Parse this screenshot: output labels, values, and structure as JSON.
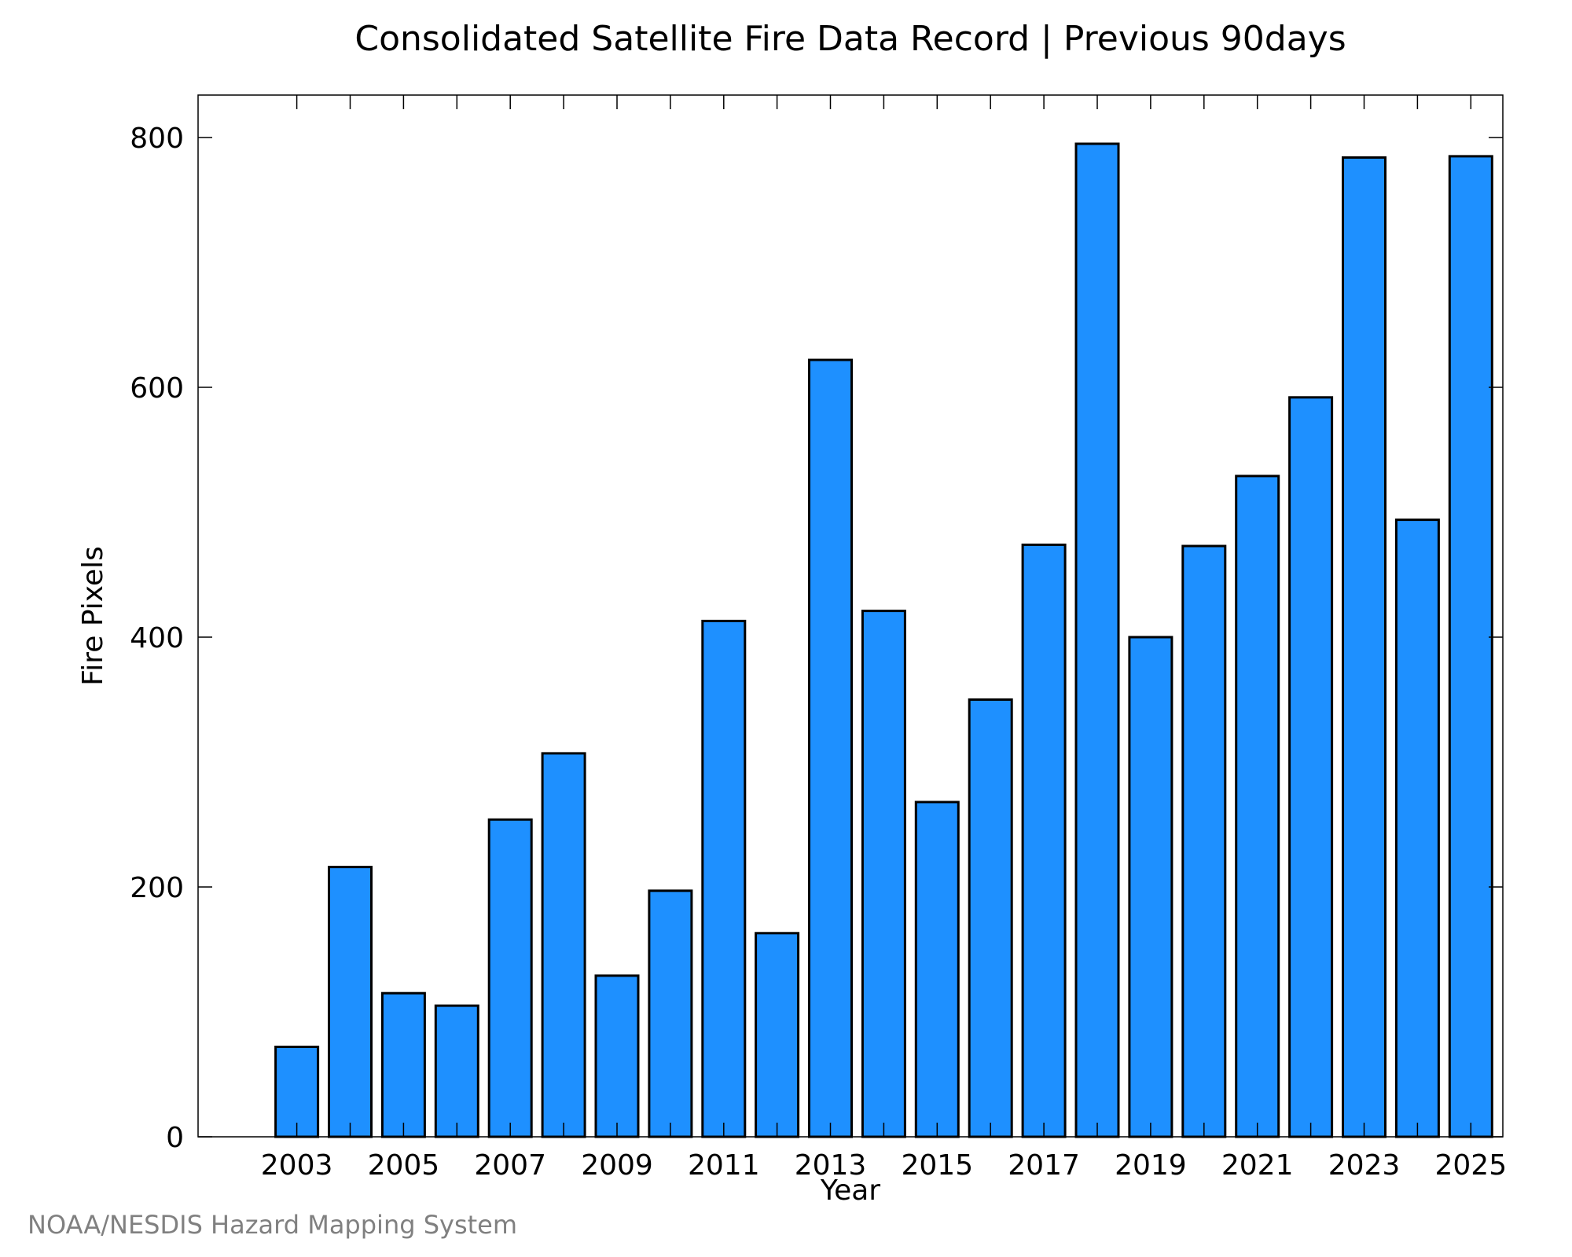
{
  "chart_data": {
    "type": "bar",
    "title": "Consolidated Satellite Fire Data Record | Previous 90days",
    "xlabel": "Year",
    "ylabel": "Fire Pixels",
    "categories": [
      "2003",
      "2004",
      "2005",
      "2006",
      "2007",
      "2008",
      "2009",
      "2010",
      "2011",
      "2012",
      "2013",
      "2014",
      "2015",
      "2016",
      "2017",
      "2018",
      "2019",
      "2020",
      "2021",
      "2022",
      "2023",
      "2024",
      "2025"
    ],
    "x_tick_labels": [
      "2003",
      "2005",
      "2007",
      "2009",
      "2011",
      "2013",
      "2015",
      "2017",
      "2019",
      "2021",
      "2023",
      "2025"
    ],
    "values": [
      72,
      216,
      115,
      105,
      254,
      307,
      129,
      197,
      413,
      163,
      622,
      421,
      268,
      350,
      474,
      795,
      400,
      473,
      529,
      592,
      784,
      494,
      785
    ],
    "y_ticks": [
      0,
      200,
      400,
      600,
      800
    ],
    "ylim": [
      0,
      834
    ],
    "xlim": [
      2001.15,
      2025.6
    ],
    "bar_color": "#1e90ff",
    "bar_edge_color": "#000000",
    "grid": false,
    "legend": "none"
  },
  "footer": {
    "credit": "NOAA/NESDIS Hazard Mapping System"
  }
}
